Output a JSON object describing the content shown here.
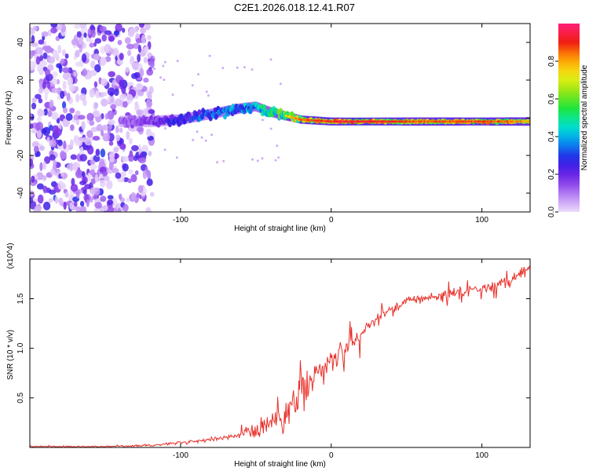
{
  "title": "C2E1.2026.018.12.41.R07",
  "chart_data": [
    {
      "type": "heatmap",
      "xlabel": "Height of straight line (km)",
      "ylabel": "Frequency (Hz)",
      "xlim": [
        -200,
        132
      ],
      "ylim": [
        -50,
        50
      ],
      "xticks": [
        -100,
        0,
        100
      ],
      "yticks": [
        -40,
        -20,
        0,
        20,
        40
      ],
      "colorbar": {
        "label": "Normalized spectral amplitude",
        "range": [
          0,
          1
        ],
        "ticks": [
          "0.0",
          "0.2",
          "0.4",
          "0.6",
          "0.8"
        ],
        "tick_values": [
          0.0,
          0.2,
          0.4,
          0.6,
          0.8
        ]
      },
      "ridge": {
        "description": "dominant frequency track vs height",
        "x": [
          -140,
          -120,
          -100,
          -80,
          -60,
          -50,
          -40,
          -30,
          -20,
          0,
          20,
          60,
          100,
          132
        ],
        "frequency": [
          -2,
          -2,
          -1,
          2,
          5,
          6,
          3,
          1,
          -1,
          -2,
          -2,
          -2,
          -2,
          -2
        ],
        "amplitude": [
          0.15,
          0.2,
          0.35,
          0.4,
          0.45,
          0.5,
          0.55,
          0.7,
          0.85,
          0.9,
          0.95,
          0.85,
          0.9,
          0.8
        ]
      }
    },
    {
      "type": "line",
      "xlabel": "Height of straight line (km)",
      "ylabel": "SNR (10 * v/v)",
      "y_multiplier": "(x10^4)",
      "xlim": [
        -200,
        132
      ],
      "ylim": [
        0,
        1.9
      ],
      "xticks": [
        -100,
        0,
        100
      ],
      "yticks": [
        0.5,
        1.0,
        1.5
      ],
      "series": [
        {
          "name": "SNR",
          "color": "#e8302a",
          "x": [
            -200,
            -150,
            -120,
            -100,
            -80,
            -60,
            -50,
            -40,
            -30,
            -25,
            -20,
            -10,
            0,
            10,
            20,
            30,
            40,
            50,
            60,
            80,
            100,
            110,
            120,
            132
          ],
          "y": [
            0.01,
            0.01,
            0.02,
            0.05,
            0.08,
            0.13,
            0.18,
            0.25,
            0.35,
            0.45,
            0.55,
            0.72,
            0.88,
            1.0,
            1.15,
            1.3,
            1.4,
            1.48,
            1.5,
            1.55,
            1.6,
            1.65,
            1.7,
            1.8
          ]
        }
      ]
    }
  ]
}
